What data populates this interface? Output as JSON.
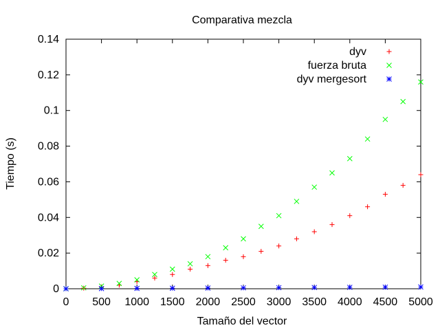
{
  "chart_data": {
    "type": "scatter",
    "title": "Comparativa mezcla",
    "xlabel": "Tamaño del vector",
    "ylabel": "Tiempo (s)",
    "xlim": [
      0,
      5000
    ],
    "ylim": [
      0,
      0.14
    ],
    "x_ticks": [
      "0",
      "500",
      "1000",
      "1500",
      "2000",
      "2500",
      "3000",
      "3500",
      "4000",
      "4500",
      "5000"
    ],
    "y_ticks": [
      "0",
      "0.02",
      "0.04",
      "0.06",
      "0.08",
      "0.1",
      "0.12",
      "0.14"
    ],
    "grid": false,
    "legend_position": "top-right",
    "series": [
      {
        "name": "dyv",
        "color": "#ff0000",
        "marker": "plus",
        "x": [
          0,
          250,
          500,
          750,
          1000,
          1250,
          1500,
          1750,
          2000,
          2250,
          2500,
          2750,
          3000,
          3250,
          3500,
          3750,
          4000,
          4250,
          4500,
          4750,
          5000
        ],
        "y": [
          0,
          0.0003,
          0.001,
          0.002,
          0.004,
          0.006,
          0.008,
          0.011,
          0.013,
          0.016,
          0.018,
          0.021,
          0.024,
          0.028,
          0.032,
          0.036,
          0.041,
          0.046,
          0.053,
          0.058,
          0.064
        ]
      },
      {
        "name": "fuerza bruta",
        "color": "#00ff00",
        "marker": "cross",
        "x": [
          0,
          250,
          500,
          750,
          1000,
          1250,
          1500,
          1750,
          2000,
          2250,
          2500,
          2750,
          3000,
          3250,
          3500,
          3750,
          4000,
          4250,
          4500,
          4750,
          5000
        ],
        "y": [
          0,
          0.0005,
          0.0015,
          0.003,
          0.005,
          0.008,
          0.011,
          0.014,
          0.018,
          0.023,
          0.028,
          0.035,
          0.041,
          0.049,
          0.057,
          0.065,
          0.073,
          0.084,
          0.095,
          0.105,
          0.116
        ]
      },
      {
        "name": "dyv mergesort",
        "color": "#0000ff",
        "marker": "star",
        "x": [
          0,
          500,
          1000,
          1500,
          2000,
          2500,
          3000,
          3500,
          4000,
          4500,
          5000
        ],
        "y": [
          0,
          0.0001,
          0.0002,
          0.0003,
          0.0004,
          0.0005,
          0.0006,
          0.0007,
          0.0008,
          0.0009,
          0.001
        ]
      }
    ]
  }
}
